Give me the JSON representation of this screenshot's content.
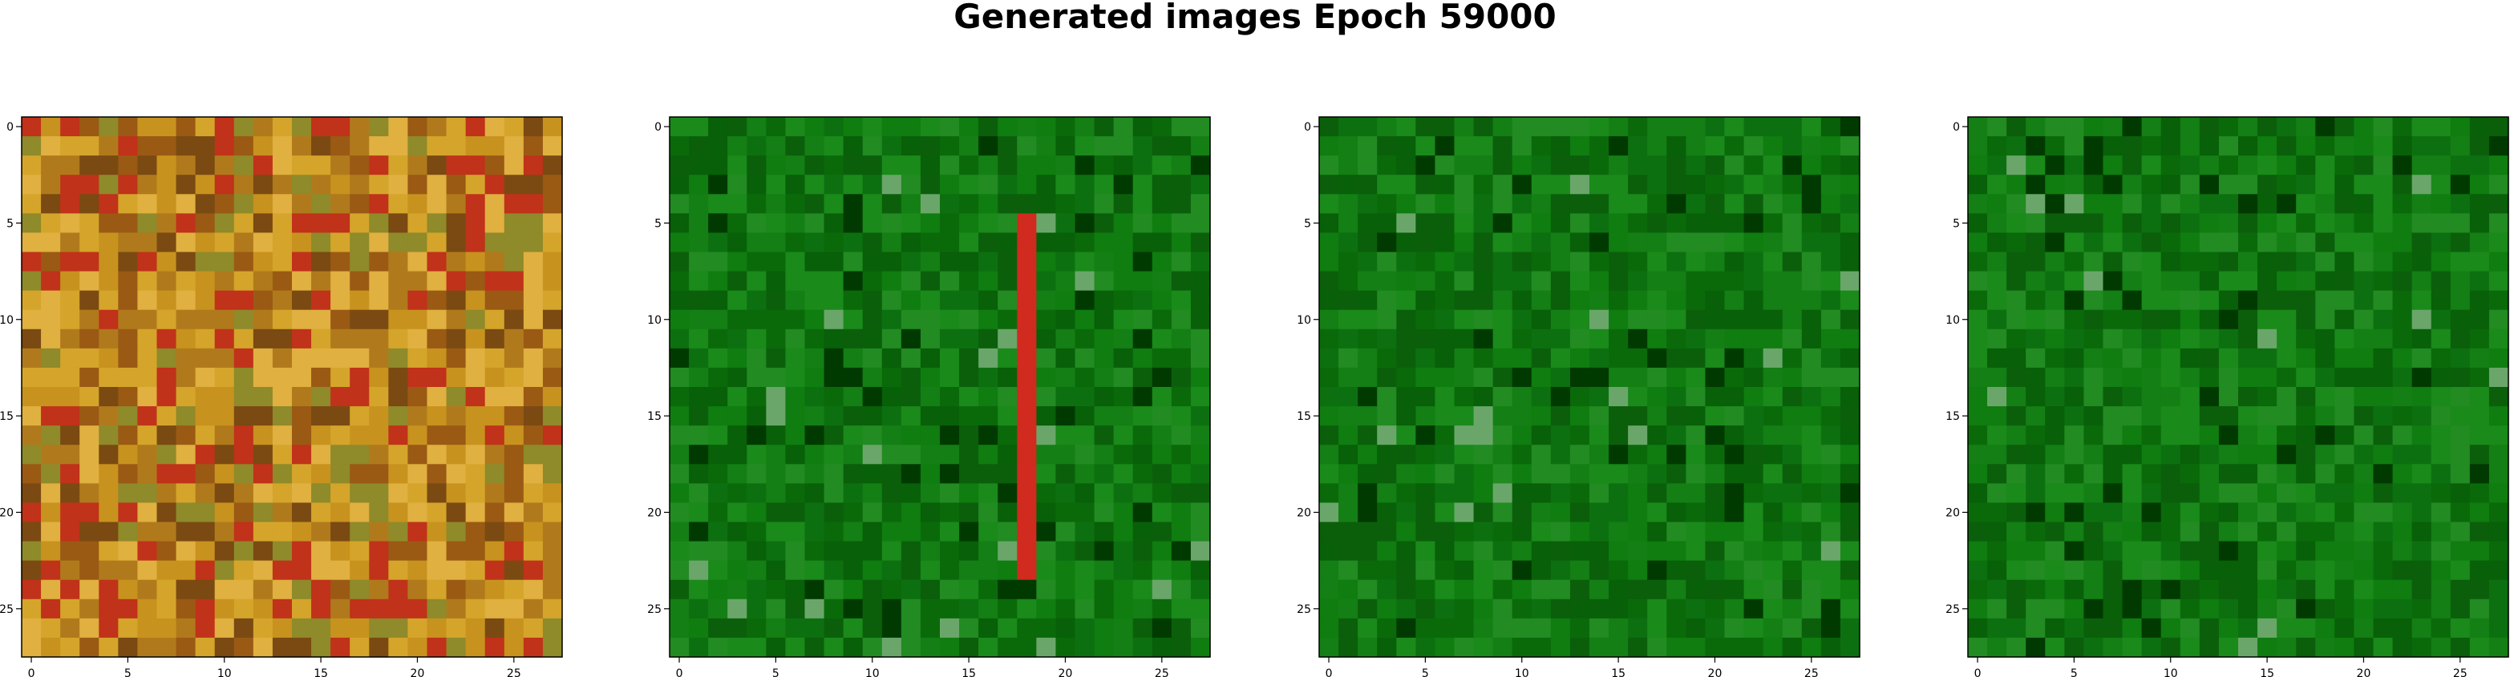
{
  "title": "Generated images Epoch 59000",
  "chart_data": {
    "type": "heatmap",
    "title": "Generated images Epoch 59000",
    "image_grid": [
      28,
      28
    ],
    "panels": [
      {
        "id": "image-1",
        "palette": "warm",
        "xticks": [
          0,
          5,
          10,
          15,
          20,
          25
        ],
        "yticks": [
          0,
          5,
          10,
          15,
          20,
          25
        ],
        "xlim": [
          -0.5,
          27.5
        ],
        "ylim": [
          27.5,
          -0.5
        ]
      },
      {
        "id": "image-2",
        "palette": "green",
        "feature": "red vertical stripe near column 18",
        "xticks": [
          0,
          5,
          10,
          15,
          20,
          25
        ],
        "yticks": [
          0,
          5,
          10,
          15,
          20,
          25
        ],
        "xlim": [
          -0.5,
          27.5
        ],
        "ylim": [
          27.5,
          -0.5
        ]
      },
      {
        "id": "image-3",
        "palette": "green",
        "xticks": [
          0,
          5,
          10,
          15,
          20,
          25
        ],
        "yticks": [
          0,
          5,
          10,
          15,
          20,
          25
        ],
        "xlim": [
          -0.5,
          27.5
        ],
        "ylim": [
          27.5,
          -0.5
        ]
      },
      {
        "id": "image-4",
        "palette": "green",
        "xticks": [
          0,
          5,
          10,
          15,
          20,
          25
        ],
        "yticks": [
          0,
          5,
          10,
          15,
          20,
          25
        ],
        "xlim": [
          -0.5,
          27.5
        ],
        "ylim": [
          27.5,
          -0.5
        ]
      }
    ],
    "colors": {
      "warm": [
        "#b07a1c",
        "#c8921e",
        "#9a5a14",
        "#d4a52a",
        "#7a4a12",
        "#c0321a",
        "#8f8a2a",
        "#e0b040"
      ],
      "green": [
        "#0a6a0a",
        "#0f7d0f",
        "#147f14",
        "#0b5f0b",
        "#1a8a1a",
        "#0d7010",
        "#228b22",
        "#086008"
      ],
      "stripe": "#d12a1e"
    }
  }
}
